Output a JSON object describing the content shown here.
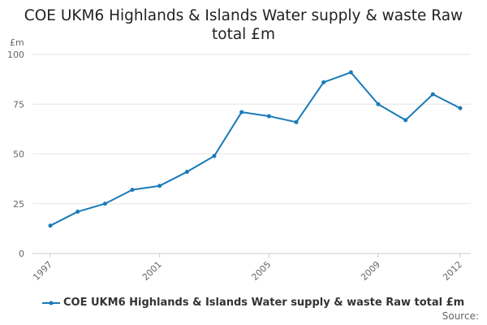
{
  "title_line1": "COE UKM6 Highlands & Islands Water supply & waste Raw",
  "title_line2": "total £m",
  "source_label": "Source:",
  "colors": {
    "series": "#1a7ab8",
    "grid": "#e6e6e6",
    "axis_text": "#666666"
  },
  "chart_data": {
    "type": "line",
    "title": "COE UKM6 Highlands & Islands Water supply & waste Raw total £m",
    "ylabel": "£m",
    "ylim": [
      0,
      100
    ],
    "yticks": [
      0,
      25,
      50,
      75,
      100
    ],
    "xlim": [
      1997,
      2012
    ],
    "xticks": [
      "1997",
      "2001",
      "2005",
      "2009",
      "2012"
    ],
    "grid": true,
    "legend_position": "bottom",
    "x": [
      1997,
      1998,
      1999,
      2000,
      2001,
      2002,
      2003,
      2004,
      2005,
      2006,
      2007,
      2008,
      2009,
      2010,
      2011,
      2012
    ],
    "series": [
      {
        "name": "COE UKM6 Highlands & Islands Water supply & waste Raw total £m",
        "values": [
          14,
          21,
          25,
          32,
          34,
          41,
          49,
          71,
          69,
          66,
          86,
          91,
          75,
          67,
          80,
          73
        ]
      }
    ]
  }
}
